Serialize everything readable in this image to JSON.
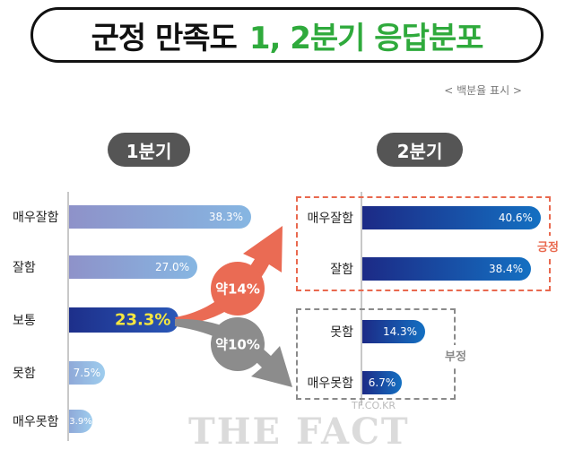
{
  "title": {
    "part1": "군정 만족도",
    "part2": "1, 2분기 응답분포"
  },
  "note": "< 백분율 표시 >",
  "chart_data": [
    {
      "type": "bar",
      "title": "1분기",
      "categories": [
        "매우잘함",
        "잘함",
        "보통",
        "못함",
        "매우못함"
      ],
      "values": [
        38.3,
        27.0,
        23.3,
        7.5,
        3.9
      ],
      "value_labels": [
        "38.3%",
        "27.0%",
        "23.3%",
        "7.5%",
        "3.9%"
      ],
      "highlight": "보통"
    },
    {
      "type": "bar",
      "title": "2분기",
      "categories": [
        "매우잘함",
        "잘함",
        "못함",
        "매우못함"
      ],
      "values": [
        40.6,
        38.4,
        14.3,
        6.7
      ],
      "value_labels": [
        "40.6%",
        "38.4%",
        "14.3%",
        "6.7%"
      ],
      "groups": [
        {
          "label": "긍정",
          "members": [
            "매우잘함",
            "잘함"
          ]
        },
        {
          "label": "부정",
          "members": [
            "못함",
            "매우못함"
          ]
        }
      ]
    }
  ],
  "annotations": {
    "up": "약14%",
    "down": "약10%"
  },
  "colors": {
    "accent_green": "#2faa3c",
    "positive": "#e9694f",
    "negative": "#8a8a8a"
  },
  "watermark": {
    "brand": "THE FACT",
    "site": "TF.CO.KR"
  }
}
